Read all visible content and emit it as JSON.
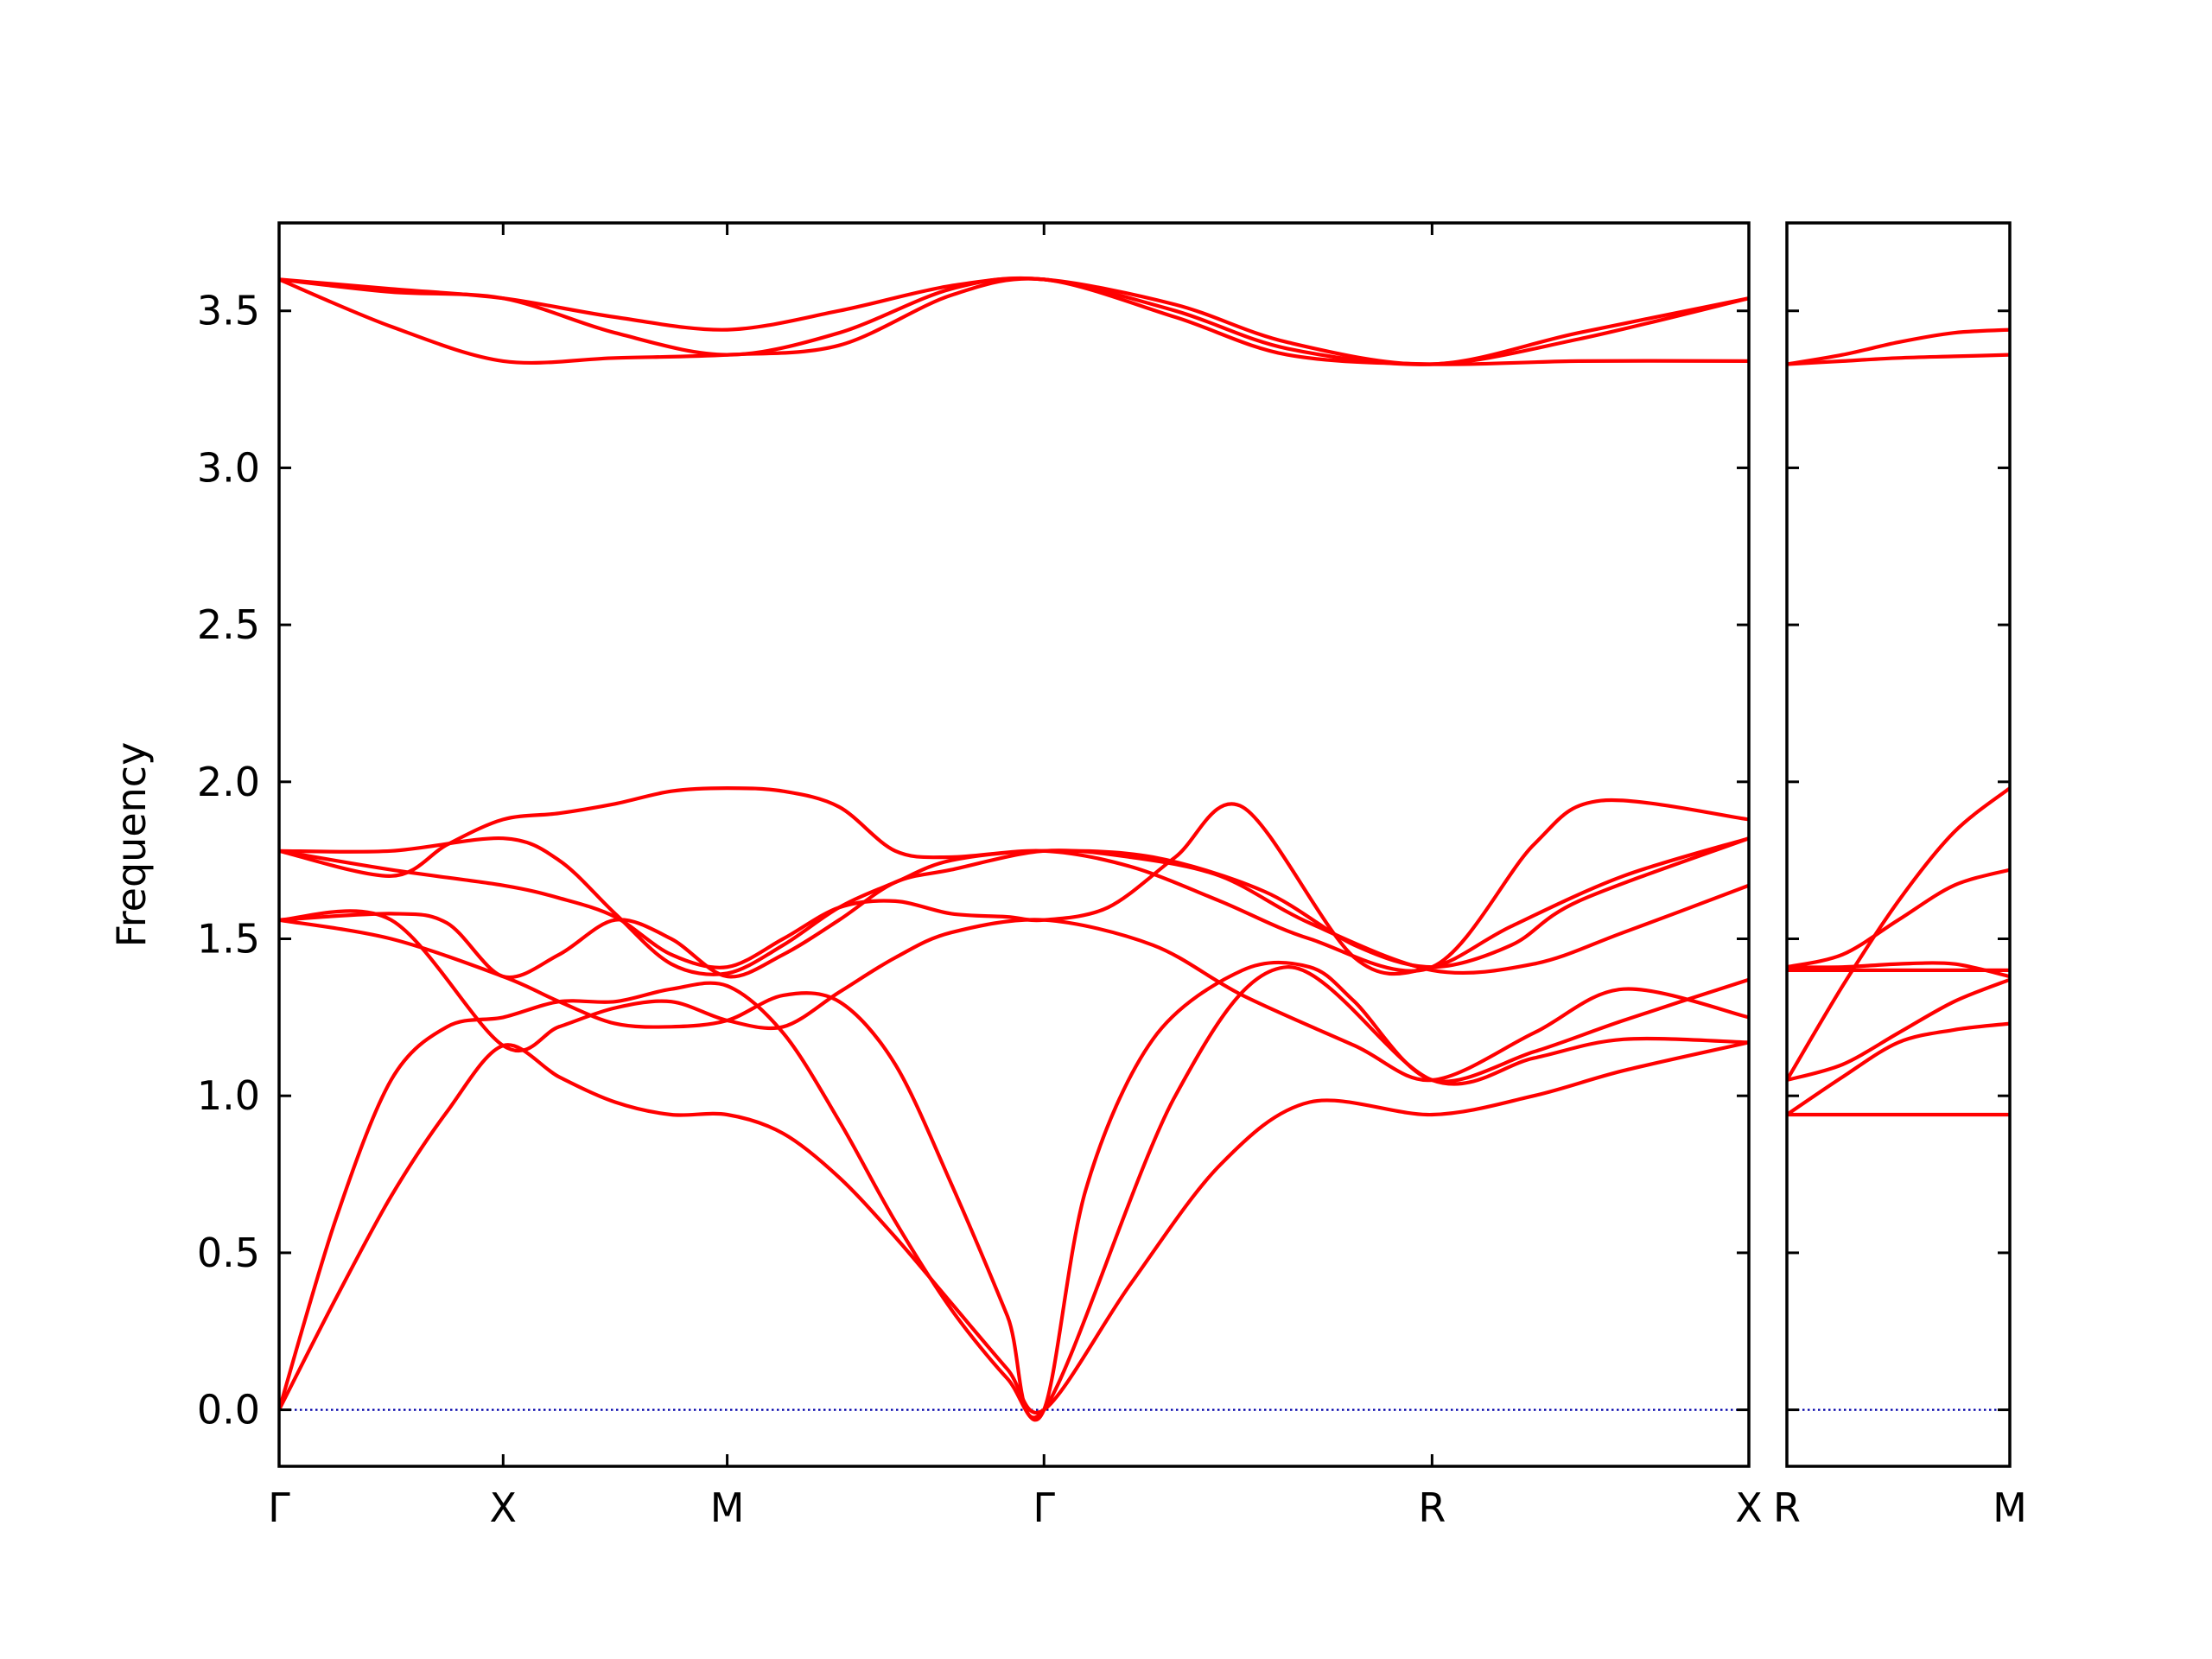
{
  "chart_data": {
    "type": "line",
    "title": "",
    "ylabel": "Frequency",
    "ylim": [
      -0.18,
      3.78
    ],
    "yticks": [
      "0.0",
      "0.5",
      "1.0",
      "1.5",
      "2.0",
      "2.5",
      "3.0",
      "3.5"
    ],
    "zero_line": {
      "y": 0.0,
      "style": "dotted",
      "color": "#0000aa"
    },
    "band_color": "#ff0000",
    "panels": [
      {
        "name": "main",
        "xlabels": [
          "Γ",
          "X",
          "M",
          "Γ",
          "R",
          "X"
        ],
        "xticks": [
          0.0,
          1.0,
          2.0,
          3.414,
          5.146,
          6.56
        ],
        "xlim": [
          0.0,
          6.56
        ],
        "bands": [
          {
            "x": [
              0.0,
              0.25,
              0.5,
              0.75,
              1.0,
              1.25,
              1.5,
              1.75,
              2.0,
              2.25,
              2.5,
              2.75,
              3.0,
              3.25,
              3.414,
              3.8,
              4.2,
              4.6,
              5.146,
              5.6,
              6.0,
              6.56
            ],
            "y": [
              0.0,
              0.35,
              0.68,
              0.95,
              1.16,
              1.06,
              0.98,
              0.94,
              0.94,
              0.88,
              0.74,
              0.55,
              0.34,
              0.13,
              0.0,
              0.4,
              0.78,
              0.98,
              0.94,
              1.0,
              1.08,
              1.17
            ]
          },
          {
            "x": [
              0.0,
              0.25,
              0.5,
              0.75,
              1.0,
              1.25,
              1.5,
              1.75,
              2.0,
              2.25,
              2.5,
              2.75,
              3.0,
              3.25,
              3.414,
              3.6,
              3.9,
              4.3,
              4.6,
              4.8,
              5.146,
              5.6,
              6.0,
              6.56
            ],
            "y": [
              0.0,
              0.6,
              1.05,
              1.22,
              1.25,
              1.3,
              1.3,
              1.34,
              1.35,
              1.2,
              0.92,
              0.6,
              0.32,
              0.1,
              0.0,
              0.7,
              1.18,
              1.4,
              1.41,
              1.3,
              1.05,
              1.14,
              1.24,
              1.37
            ]
          },
          {
            "x": [
              0.0,
              0.5,
              1.0,
              1.25,
              1.5,
              1.75,
              2.0,
              2.25,
              2.5,
              2.75,
              3.0,
              3.25,
              3.414,
              4.0,
              4.5,
              5.146,
              5.6,
              6.0,
              6.56
            ],
            "y": [
              1.56,
              1.5,
              1.38,
              1.3,
              1.23,
              1.22,
              1.24,
              1.32,
              1.3,
              1.1,
              0.72,
              0.3,
              0.0,
              1.0,
              1.41,
              1.05,
              1.12,
              1.18,
              1.17
            ]
          },
          {
            "x": [
              0.0,
              0.5,
              1.0,
              1.25,
              1.5,
              1.75,
              2.0,
              2.25,
              2.5,
              2.75,
              3.0,
              3.414,
              3.9,
              4.3,
              4.8,
              5.146,
              5.6,
              6.0,
              6.56
            ],
            "y": [
              1.56,
              1.56,
              1.16,
              1.22,
              1.28,
              1.3,
              1.24,
              1.22,
              1.33,
              1.44,
              1.52,
              1.56,
              1.48,
              1.32,
              1.16,
              1.05,
              1.2,
              1.34,
              1.25
            ]
          },
          {
            "x": [
              0.0,
              0.5,
              0.75,
              1.0,
              1.25,
              1.5,
              1.75,
              2.0,
              2.25,
              2.5,
              2.75,
              3.0,
              3.414,
              3.8,
              4.2,
              4.6,
              5.146,
              5.6,
              6.0,
              6.56
            ],
            "y": [
              1.56,
              1.58,
              1.55,
              1.38,
              1.45,
              1.56,
              1.5,
              1.38,
              1.45,
              1.56,
              1.68,
              1.72,
              1.78,
              1.76,
              1.7,
              1.55,
              1.4,
              1.42,
              1.52,
              1.67
            ]
          },
          {
            "x": [
              0.0,
              0.5,
              1.0,
              1.25,
              1.5,
              1.75,
              2.0,
              2.25,
              2.5,
              2.75,
              3.0,
              3.25,
              3.414,
              3.7,
              4.0,
              4.3,
              4.8,
              5.146,
              5.5,
              6.0,
              6.56
            ],
            "y": [
              1.78,
              1.72,
              1.67,
              1.63,
              1.57,
              1.45,
              1.41,
              1.5,
              1.6,
              1.62,
              1.58,
              1.57,
              1.56,
              1.6,
              1.76,
              1.92,
              1.44,
              1.41,
              1.54,
              1.7,
              1.82
            ]
          },
          {
            "x": [
              0.0,
              0.5,
              1.0,
              1.25,
              1.5,
              1.75,
              2.0,
              2.25,
              2.5,
              2.75,
              3.0,
              3.414,
              3.9,
              4.4,
              4.8,
              5.146,
              5.5,
              5.8,
              6.56
            ],
            "y": [
              1.78,
              1.78,
              1.82,
              1.75,
              1.58,
              1.42,
              1.39,
              1.48,
              1.6,
              1.68,
              1.75,
              1.78,
              1.76,
              1.65,
              1.48,
              1.41,
              1.48,
              1.62,
              1.82
            ]
          },
          {
            "x": [
              0.0,
              0.5,
              0.75,
              1.0,
              1.25,
              1.5,
              1.75,
              2.0,
              2.25,
              2.5,
              2.75,
              3.0,
              3.414,
              3.8,
              4.2,
              4.6,
              5.146,
              5.6,
              5.9,
              6.56
            ],
            "y": [
              1.78,
              1.7,
              1.8,
              1.88,
              1.9,
              1.93,
              1.97,
              1.98,
              1.97,
              1.92,
              1.78,
              1.76,
              1.78,
              1.73,
              1.62,
              1.5,
              1.41,
              1.8,
              1.94,
              1.88
            ]
          },
          {
            "x": [
              0.0,
              0.5,
              1.0,
              1.5,
              2.0,
              2.5,
              3.0,
              3.414,
              4.0,
              4.5,
              5.146,
              5.8,
              6.56
            ],
            "y": [
              3.6,
              3.45,
              3.34,
              3.35,
              3.36,
              3.39,
              3.55,
              3.6,
              3.48,
              3.36,
              3.33,
              3.34,
              3.34
            ]
          },
          {
            "x": [
              0.0,
              0.5,
              1.0,
              1.5,
              2.0,
              2.5,
              3.0,
              3.414,
              4.0,
              4.5,
              5.146,
              5.8,
              6.56
            ],
            "y": [
              3.6,
              3.56,
              3.54,
              3.43,
              3.36,
              3.43,
              3.57,
              3.6,
              3.5,
              3.38,
              3.33,
              3.41,
              3.54
            ]
          },
          {
            "x": [
              0.0,
              0.5,
              1.0,
              1.5,
              2.0,
              2.5,
              3.0,
              3.414,
              4.0,
              4.5,
              5.146,
              5.8,
              6.56
            ],
            "y": [
              3.6,
              3.57,
              3.54,
              3.48,
              3.44,
              3.5,
              3.58,
              3.6,
              3.52,
              3.4,
              3.33,
              3.43,
              3.54
            ]
          }
        ]
      },
      {
        "name": "side",
        "xlabels": [
          "R",
          "M"
        ],
        "xticks": [
          0.0,
          1.0
        ],
        "xlim": [
          0.0,
          1.0
        ],
        "bands": [
          {
            "x": [
              0.0,
              0.25,
              0.5,
              0.75,
              1.0
            ],
            "y": [
              0.94,
              0.94,
              0.94,
              0.94,
              0.94
            ]
          },
          {
            "x": [
              0.0,
              0.25,
              0.5,
              0.75,
              1.0
            ],
            "y": [
              0.94,
              1.06,
              1.17,
              1.21,
              1.23
            ]
          },
          {
            "x": [
              0.0,
              0.25,
              0.5,
              0.75,
              1.0
            ],
            "y": [
              1.05,
              1.1,
              1.2,
              1.3,
              1.37
            ]
          },
          {
            "x": [
              0.0,
              0.25,
              0.5,
              0.75,
              1.0
            ],
            "y": [
              1.05,
              1.35,
              1.62,
              1.84,
              1.98
            ]
          },
          {
            "x": [
              0.0,
              0.25,
              0.5,
              0.75,
              1.0
            ],
            "y": [
              1.41,
              1.45,
              1.56,
              1.67,
              1.72
            ]
          },
          {
            "x": [
              0.0,
              0.25,
              0.5,
              0.75,
              1.0
            ],
            "y": [
              1.41,
              1.41,
              1.42,
              1.42,
              1.38
            ]
          },
          {
            "x": [
              0.0,
              0.25,
              0.5,
              0.75,
              1.0
            ],
            "y": [
              1.4,
              1.4,
              1.4,
              1.4,
              1.4
            ]
          },
          {
            "x": [
              0.0,
              0.25,
              0.5,
              0.75,
              1.0
            ],
            "y": [
              3.33,
              3.34,
              3.35,
              3.355,
              3.36
            ]
          },
          {
            "x": [
              0.0,
              0.25,
              0.5,
              0.75,
              1.0
            ],
            "y": [
              3.33,
              3.36,
              3.4,
              3.43,
              3.44
            ]
          }
        ]
      }
    ]
  }
}
